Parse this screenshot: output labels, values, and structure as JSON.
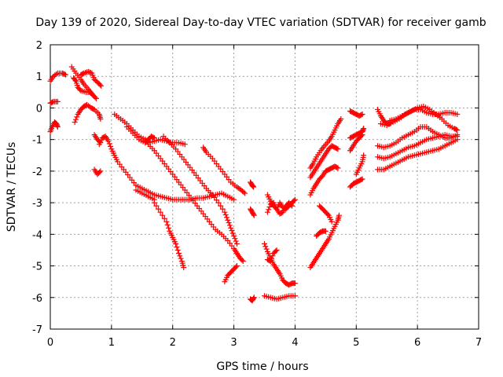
{
  "chart_data": {
    "type": "scatter",
    "title": "Day 139 of 2020, Sidereal Day-to-day VTEC variation (SDTVAR) for receiver gamb",
    "xlabel": "GPS time / hours",
    "ylabel": "SDTVAR / TECUs",
    "xlim": [
      0,
      7
    ],
    "ylim": [
      -7,
      2
    ],
    "xticks": [
      "0",
      "1",
      "2",
      "3",
      "4",
      "5",
      "6",
      "7"
    ],
    "yticks": [
      "-7",
      "-6",
      "-5",
      "-4",
      "-3",
      "-2",
      "-1",
      "0",
      "1",
      "2"
    ],
    "grid": true,
    "marker": "plus",
    "color": "#ff0000",
    "tracks": [
      [
        [
          0.0,
          0.85
        ],
        [
          0.05,
          1.0
        ],
        [
          0.12,
          1.1
        ],
        [
          0.2,
          1.1
        ],
        [
          0.25,
          1.05
        ]
      ],
      [
        [
          0.0,
          0.15
        ],
        [
          0.05,
          0.2
        ],
        [
          0.12,
          0.2
        ]
      ],
      [
        [
          0.0,
          -0.75
        ],
        [
          0.03,
          -0.6
        ],
        [
          0.07,
          -0.45
        ],
        [
          0.1,
          -0.5
        ],
        [
          0.12,
          -0.6
        ]
      ],
      [
        [
          0.35,
          1.3
        ],
        [
          0.42,
          1.1
        ],
        [
          0.5,
          0.9
        ],
        [
          0.55,
          0.75
        ],
        [
          0.62,
          0.6
        ],
        [
          0.68,
          0.45
        ]
      ],
      [
        [
          0.4,
          -0.45
        ],
        [
          0.45,
          -0.2
        ],
        [
          0.5,
          -0.05
        ],
        [
          0.55,
          0.05
        ],
        [
          0.6,
          0.1
        ],
        [
          0.67,
          0.0
        ],
        [
          0.72,
          -0.05
        ],
        [
          0.8,
          -0.2
        ],
        [
          0.82,
          -0.35
        ]
      ],
      [
        [
          0.5,
          1.05
        ],
        [
          0.55,
          1.1
        ],
        [
          0.62,
          1.15
        ],
        [
          0.68,
          1.1
        ],
        [
          0.72,
          0.9
        ],
        [
          0.78,
          0.8
        ],
        [
          0.83,
          0.7
        ]
      ],
      [
        [
          0.38,
          0.95
        ],
        [
          0.42,
          0.85
        ],
        [
          0.45,
          0.65
        ],
        [
          0.5,
          0.55
        ],
        [
          0.58,
          0.5
        ],
        [
          0.65,
          0.5
        ],
        [
          0.7,
          0.4
        ],
        [
          0.75,
          0.3
        ]
      ],
      [
        [
          0.72,
          -0.85
        ],
        [
          0.77,
          -1.0
        ],
        [
          0.82,
          -1.1
        ]
      ],
      [
        [
          0.72,
          -1.95
        ],
        [
          0.77,
          -2.1
        ],
        [
          0.82,
          -2.0
        ]
      ],
      [
        [
          0.8,
          -1.15
        ],
        [
          0.85,
          -0.95
        ],
        [
          0.9,
          -0.9
        ],
        [
          0.95,
          -1.05
        ],
        [
          1.0,
          -1.3
        ],
        [
          1.05,
          -1.5
        ],
        [
          1.1,
          -1.7
        ],
        [
          1.2,
          -1.95
        ],
        [
          1.3,
          -2.2
        ],
        [
          1.4,
          -2.45
        ],
        [
          1.5,
          -2.55
        ],
        [
          1.6,
          -2.65
        ],
        [
          1.7,
          -2.75
        ],
        [
          1.8,
          -2.8
        ],
        [
          1.9,
          -2.85
        ],
        [
          2.0,
          -2.9
        ],
        [
          2.1,
          -2.9
        ],
        [
          2.2,
          -2.9
        ],
        [
          2.3,
          -2.9
        ],
        [
          2.4,
          -2.85
        ],
        [
          2.5,
          -2.85
        ],
        [
          2.6,
          -2.8
        ],
        [
          2.7,
          -2.75
        ],
        [
          2.8,
          -2.7
        ],
        [
          2.9,
          -2.8
        ],
        [
          3.0,
          -2.9
        ]
      ],
      [
        [
          1.4,
          -2.6
        ],
        [
          1.5,
          -2.7
        ],
        [
          1.6,
          -2.8
        ],
        [
          1.7,
          -2.9
        ]
      ],
      [
        [
          1.05,
          -0.2
        ],
        [
          1.15,
          -0.35
        ],
        [
          1.25,
          -0.5
        ],
        [
          1.35,
          -0.7
        ],
        [
          1.45,
          -0.9
        ],
        [
          1.55,
          -1.0
        ],
        [
          1.6,
          -1.1
        ],
        [
          1.7,
          -1.05
        ],
        [
          1.8,
          -1.0
        ],
        [
          1.9,
          -1.05
        ],
        [
          2.0,
          -1.1
        ],
        [
          2.1,
          -1.1
        ],
        [
          2.2,
          -1.15
        ]
      ],
      [
        [
          1.25,
          -0.6
        ],
        [
          1.35,
          -0.8
        ],
        [
          1.45,
          -1.0
        ],
        [
          1.55,
          -1.1
        ],
        [
          1.6,
          -1.0
        ],
        [
          1.65,
          -0.9
        ],
        [
          1.7,
          -0.95
        ]
      ],
      [
        [
          1.7,
          -3.0
        ],
        [
          1.8,
          -3.3
        ],
        [
          1.9,
          -3.6
        ],
        [
          1.95,
          -3.9
        ],
        [
          2.0,
          -4.1
        ],
        [
          2.05,
          -4.3
        ],
        [
          2.1,
          -4.6
        ],
        [
          2.15,
          -4.85
        ],
        [
          2.18,
          -5.05
        ]
      ],
      [
        [
          1.6,
          -1.15
        ],
        [
          1.7,
          -1.35
        ],
        [
          1.8,
          -1.6
        ],
        [
          1.9,
          -1.85
        ],
        [
          2.0,
          -2.1
        ],
        [
          2.1,
          -2.35
        ],
        [
          2.2,
          -2.6
        ],
        [
          2.3,
          -2.85
        ],
        [
          2.4,
          -3.1
        ],
        [
          2.5,
          -3.35
        ],
        [
          2.6,
          -3.6
        ],
        [
          2.7,
          -3.85
        ],
        [
          2.8,
          -4.0
        ],
        [
          2.9,
          -4.2
        ],
        [
          3.0,
          -4.45
        ],
        [
          3.05,
          -4.6
        ],
        [
          3.1,
          -4.75
        ],
        [
          3.15,
          -4.85
        ]
      ],
      [
        [
          1.85,
          -0.9
        ],
        [
          1.95,
          -1.1
        ],
        [
          2.05,
          -1.3
        ],
        [
          2.15,
          -1.55
        ],
        [
          2.25,
          -1.8
        ],
        [
          2.35,
          -2.05
        ],
        [
          2.45,
          -2.3
        ],
        [
          2.55,
          -2.55
        ],
        [
          2.65,
          -2.75
        ],
        [
          2.75,
          -3.0
        ],
        [
          2.85,
          -3.3
        ],
        [
          2.9,
          -3.55
        ],
        [
          2.95,
          -3.8
        ],
        [
          3.0,
          -4.05
        ],
        [
          3.05,
          -4.3
        ]
      ],
      [
        [
          2.5,
          -1.25
        ],
        [
          2.55,
          -1.4
        ],
        [
          2.65,
          -1.6
        ],
        [
          2.75,
          -1.85
        ],
        [
          2.85,
          -2.1
        ],
        [
          2.95,
          -2.35
        ],
        [
          3.05,
          -2.5
        ],
        [
          3.12,
          -2.6
        ],
        [
          3.18,
          -2.7
        ]
      ],
      [
        [
          2.85,
          -5.5
        ],
        [
          2.9,
          -5.3
        ],
        [
          2.95,
          -5.2
        ],
        [
          3.0,
          -5.1
        ],
        [
          3.05,
          -5.0
        ]
      ],
      [
        [
          3.27,
          -2.35
        ],
        [
          3.3,
          -2.45
        ],
        [
          3.32,
          -2.5
        ]
      ],
      [
        [
          3.27,
          -3.2
        ],
        [
          3.3,
          -3.3
        ],
        [
          3.33,
          -3.4
        ]
      ],
      [
        [
          3.27,
          -6.05
        ],
        [
          3.3,
          -6.1
        ],
        [
          3.33,
          -6.0
        ]
      ],
      [
        [
          3.55,
          -2.75
        ],
        [
          3.6,
          -2.95
        ],
        [
          3.65,
          -3.1
        ],
        [
          3.7,
          -3.2
        ],
        [
          3.75,
          -3.0
        ],
        [
          3.8,
          -3.15
        ],
        [
          3.85,
          -3.2
        ],
        [
          3.9,
          -3.1
        ],
        [
          3.95,
          -3.0
        ],
        [
          4.0,
          -2.9
        ]
      ],
      [
        [
          3.55,
          -3.3
        ],
        [
          3.6,
          -3.05
        ],
        [
          3.65,
          -3.0
        ],
        [
          3.7,
          -3.2
        ],
        [
          3.75,
          -3.35
        ],
        [
          3.8,
          -3.3
        ],
        [
          3.85,
          -3.1
        ],
        [
          3.9,
          -3.0
        ],
        [
          3.95,
          -3.1
        ]
      ],
      [
        [
          3.5,
          -4.3
        ],
        [
          3.55,
          -4.55
        ],
        [
          3.6,
          -4.75
        ],
        [
          3.65,
          -4.95
        ],
        [
          3.7,
          -5.1
        ],
        [
          3.75,
          -5.25
        ],
        [
          3.8,
          -5.45
        ],
        [
          3.85,
          -5.55
        ],
        [
          3.9,
          -5.6
        ],
        [
          3.95,
          -5.55
        ],
        [
          4.0,
          -5.55
        ]
      ],
      [
        [
          3.55,
          -4.8
        ],
        [
          3.6,
          -4.85
        ],
        [
          3.65,
          -4.6
        ],
        [
          3.7,
          -4.5
        ]
      ],
      [
        [
          3.5,
          -5.95
        ],
        [
          3.6,
          -6.0
        ],
        [
          3.7,
          -6.05
        ],
        [
          3.8,
          -6.0
        ],
        [
          3.9,
          -5.95
        ],
        [
          4.0,
          -5.95
        ]
      ],
      [
        [
          4.25,
          -5.05
        ],
        [
          4.3,
          -4.9
        ],
        [
          4.35,
          -4.75
        ],
        [
          4.4,
          -4.6
        ],
        [
          4.45,
          -4.45
        ],
        [
          4.5,
          -4.3
        ],
        [
          4.55,
          -4.15
        ],
        [
          4.6,
          -3.95
        ],
        [
          4.65,
          -3.75
        ],
        [
          4.7,
          -3.55
        ],
        [
          4.72,
          -3.4
        ]
      ],
      [
        [
          4.25,
          -2.2
        ],
        [
          4.3,
          -2.05
        ],
        [
          4.35,
          -1.9
        ],
        [
          4.4,
          -1.75
        ],
        [
          4.45,
          -1.6
        ],
        [
          4.5,
          -1.45
        ],
        [
          4.55,
          -1.3
        ],
        [
          4.6,
          -1.2
        ],
        [
          4.65,
          -1.25
        ],
        [
          4.7,
          -1.3
        ]
      ],
      [
        [
          4.25,
          -1.9
        ],
        [
          4.3,
          -1.75
        ],
        [
          4.35,
          -1.55
        ],
        [
          4.42,
          -1.35
        ],
        [
          4.48,
          -1.2
        ],
        [
          4.55,
          -1.05
        ],
        [
          4.6,
          -0.9
        ],
        [
          4.65,
          -0.7
        ],
        [
          4.7,
          -0.5
        ],
        [
          4.75,
          -0.35
        ]
      ],
      [
        [
          4.25,
          -2.75
        ],
        [
          4.3,
          -2.55
        ],
        [
          4.35,
          -2.4
        ],
        [
          4.4,
          -2.25
        ],
        [
          4.45,
          -2.15
        ],
        [
          4.5,
          -2.0
        ],
        [
          4.55,
          -1.95
        ],
        [
          4.6,
          -1.9
        ],
        [
          4.65,
          -1.85
        ],
        [
          4.7,
          -1.9
        ]
      ],
      [
        [
          4.35,
          -4.05
        ],
        [
          4.4,
          -3.95
        ],
        [
          4.45,
          -3.9
        ],
        [
          4.5,
          -3.9
        ]
      ],
      [
        [
          4.4,
          -3.1
        ],
        [
          4.45,
          -3.2
        ],
        [
          4.5,
          -3.3
        ],
        [
          4.55,
          -3.4
        ],
        [
          4.6,
          -3.6
        ]
      ],
      [
        [
          4.9,
          -0.1
        ],
        [
          4.95,
          -0.15
        ],
        [
          5.0,
          -0.2
        ],
        [
          5.05,
          -0.25
        ],
        [
          5.1,
          -0.2
        ]
      ],
      [
        [
          4.9,
          -0.95
        ],
        [
          4.95,
          -0.9
        ],
        [
          5.0,
          -0.85
        ],
        [
          5.05,
          -0.8
        ],
        [
          5.1,
          -0.75
        ],
        [
          5.12,
          -0.65
        ]
      ],
      [
        [
          4.9,
          -1.35
        ],
        [
          4.95,
          -1.2
        ],
        [
          5.0,
          -1.05
        ],
        [
          5.05,
          -0.95
        ],
        [
          5.1,
          -0.85
        ]
      ],
      [
        [
          4.9,
          -2.5
        ],
        [
          4.95,
          -2.4
        ],
        [
          5.0,
          -2.35
        ],
        [
          5.05,
          -2.3
        ],
        [
          5.1,
          -2.25
        ]
      ],
      [
        [
          5.0,
          -2.1
        ],
        [
          5.05,
          -1.9
        ],
        [
          5.1,
          -1.7
        ],
        [
          5.12,
          -1.5
        ]
      ],
      [
        [
          5.35,
          -0.05
        ],
        [
          5.4,
          -0.25
        ],
        [
          5.45,
          -0.4
        ],
        [
          5.5,
          -0.5
        ],
        [
          5.55,
          -0.5
        ]
      ],
      [
        [
          5.55,
          -0.4
        ],
        [
          5.65,
          -0.35
        ],
        [
          5.75,
          -0.25
        ],
        [
          5.85,
          -0.15
        ],
        [
          5.95,
          -0.05
        ],
        [
          6.05,
          -0.05
        ],
        [
          6.15,
          -0.15
        ],
        [
          6.25,
          -0.2
        ],
        [
          6.35,
          -0.2
        ],
        [
          6.45,
          -0.15
        ],
        [
          6.55,
          -0.15
        ],
        [
          6.65,
          -0.2
        ]
      ],
      [
        [
          5.4,
          -0.5
        ],
        [
          5.5,
          -0.55
        ],
        [
          5.6,
          -0.45
        ],
        [
          5.7,
          -0.35
        ],
        [
          5.8,
          -0.2
        ],
        [
          5.9,
          -0.1
        ],
        [
          6.0,
          0.0
        ],
        [
          6.1,
          0.05
        ],
        [
          6.2,
          -0.05
        ],
        [
          6.3,
          -0.2
        ],
        [
          6.4,
          -0.35
        ],
        [
          6.5,
          -0.55
        ],
        [
          6.6,
          -0.65
        ],
        [
          6.65,
          -0.7
        ]
      ],
      [
        [
          5.35,
          -1.2
        ],
        [
          5.45,
          -1.25
        ],
        [
          5.55,
          -1.2
        ],
        [
          5.65,
          -1.1
        ],
        [
          5.75,
          -0.95
        ],
        [
          5.85,
          -0.85
        ],
        [
          5.95,
          -0.75
        ],
        [
          6.05,
          -0.6
        ],
        [
          6.15,
          -0.6
        ],
        [
          6.25,
          -0.75
        ],
        [
          6.35,
          -0.85
        ],
        [
          6.45,
          -0.95
        ],
        [
          6.55,
          -0.95
        ],
        [
          6.65,
          -0.85
        ]
      ],
      [
        [
          5.35,
          -1.55
        ],
        [
          5.45,
          -1.6
        ],
        [
          5.55,
          -1.55
        ],
        [
          5.65,
          -1.45
        ],
        [
          5.75,
          -1.35
        ],
        [
          5.85,
          -1.25
        ],
        [
          5.95,
          -1.2
        ],
        [
          6.05,
          -1.1
        ],
        [
          6.15,
          -1.0
        ],
        [
          6.25,
          -0.95
        ],
        [
          6.35,
          -0.9
        ],
        [
          6.45,
          -0.85
        ],
        [
          6.55,
          -0.9
        ],
        [
          6.65,
          -0.9
        ]
      ],
      [
        [
          5.35,
          -1.95
        ],
        [
          5.45,
          -1.95
        ],
        [
          5.55,
          -1.85
        ],
        [
          5.65,
          -1.75
        ],
        [
          5.75,
          -1.65
        ],
        [
          5.85,
          -1.55
        ],
        [
          5.95,
          -1.5
        ],
        [
          6.05,
          -1.45
        ],
        [
          6.15,
          -1.4
        ],
        [
          6.25,
          -1.35
        ],
        [
          6.35,
          -1.3
        ],
        [
          6.45,
          -1.2
        ],
        [
          6.55,
          -1.1
        ],
        [
          6.65,
          -1.0
        ]
      ]
    ]
  }
}
